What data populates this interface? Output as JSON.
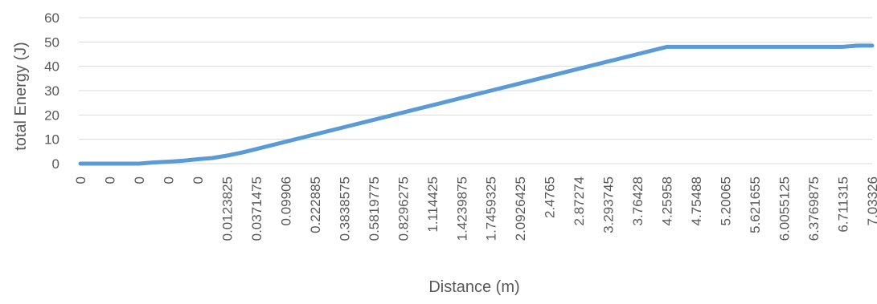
{
  "chart_data": {
    "type": "line",
    "title": "",
    "xlabel": "Distance (m)",
    "ylabel": "total Energy (J)",
    "ylim": [
      0,
      60
    ],
    "yticks": [
      0,
      10,
      20,
      30,
      40,
      50,
      60
    ],
    "grid": true,
    "legend": "none",
    "line_color": "#5B9BD5",
    "x_tick_labels": [
      "0",
      "0",
      "0",
      "0",
      "0",
      "0.0123825",
      "0.0371475",
      "0.09906",
      "0.222885",
      "0.3838575",
      "0.5819775",
      "0.8296275",
      "1.114425",
      "1.4239875",
      "1.7459325",
      "2.0926425",
      "2.4765",
      "2.87274",
      "3.293745",
      "3.76428",
      "4.25958",
      "4.75488",
      "5.20065",
      "5.621655",
      "6.0055125",
      "6.3769875",
      "6.711315",
      "7.03326"
    ],
    "series": [
      {
        "x_index": [
          0,
          1,
          2,
          2.5,
          3,
          3.5,
          4,
          4.5,
          5,
          5.5,
          6,
          7,
          8,
          9,
          10,
          11,
          12,
          13,
          14,
          15,
          16,
          17,
          18,
          19,
          20,
          21,
          22,
          23,
          24,
          25,
          26,
          26.5,
          27
        ],
        "values": [
          0,
          0,
          0,
          0.5,
          0.8,
          1.2,
          1.8,
          2.3,
          3.3,
          4.5,
          6,
          9,
          12,
          15,
          18,
          21,
          24,
          27,
          30,
          33,
          36,
          39,
          42,
          45,
          48,
          48,
          48,
          48,
          48,
          48,
          48,
          48.5,
          48.5
        ]
      }
    ]
  }
}
